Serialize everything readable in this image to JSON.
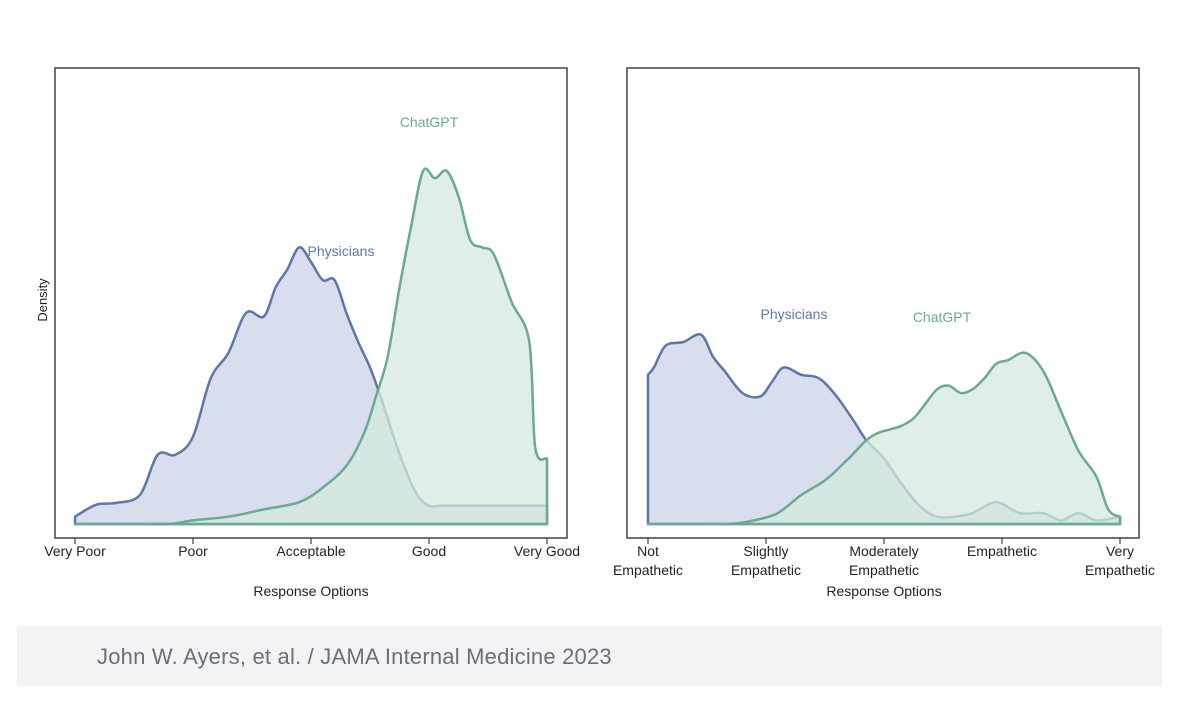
{
  "chart_data": [
    {
      "type": "area",
      "ylabel": "Density",
      "xlabel": "Response Options",
      "x_tick_labels": [
        "Very Poor",
        "Poor",
        "Acceptable",
        "Good",
        "Very Good"
      ],
      "xlim": [
        1,
        5
      ],
      "ylim": [
        0,
        1.0
      ],
      "grid": false,
      "series": [
        {
          "name": "Physicians",
          "color": "#5b78a8",
          "fill": "#d6dcec",
          "x": [
            1.0,
            1.1,
            1.2,
            1.35,
            1.55,
            1.7,
            1.85,
            2.0,
            2.15,
            2.3,
            2.45,
            2.6,
            2.7,
            2.8,
            2.9,
            3.0,
            3.1,
            3.2,
            3.3,
            3.4,
            3.5,
            3.6,
            3.7,
            3.8,
            3.9,
            4.0,
            4.1,
            4.2,
            4.3,
            4.4,
            4.5,
            4.6,
            4.7,
            4.8,
            5.0
          ],
          "y": [
            0.02,
            0.04,
            0.055,
            0.058,
            0.08,
            0.19,
            0.19,
            0.24,
            0.4,
            0.47,
            0.58,
            0.57,
            0.65,
            0.7,
            0.76,
            0.72,
            0.67,
            0.67,
            0.58,
            0.5,
            0.43,
            0.34,
            0.24,
            0.15,
            0.08,
            0.05,
            0.05,
            0.05,
            0.05,
            0.05,
            0.05,
            0.05,
            0.05,
            0.05,
            0.05
          ]
        },
        {
          "name": "ChatGPT",
          "color": "#6aaa92",
          "fill": "#d4e9df",
          "x": [
            1.0,
            1.5,
            1.8,
            2.0,
            2.3,
            2.6,
            2.9,
            3.1,
            3.3,
            3.45,
            3.55,
            3.65,
            3.75,
            3.85,
            3.95,
            4.05,
            4.15,
            4.25,
            4.35,
            4.45,
            4.55,
            4.7,
            4.85,
            4.9,
            5.0
          ],
          "y": [
            0.0,
            0.0,
            0.0,
            0.01,
            0.02,
            0.04,
            0.06,
            0.1,
            0.16,
            0.25,
            0.35,
            0.46,
            0.65,
            0.82,
            0.97,
            0.95,
            0.97,
            0.9,
            0.78,
            0.76,
            0.74,
            0.61,
            0.5,
            0.21,
            0.18
          ]
        }
      ],
      "annotations": [
        "Physicians",
        "ChatGPT"
      ]
    },
    {
      "type": "area",
      "xlabel": "Response Options",
      "x_tick_labels": [
        [
          "Not",
          "Empathetic"
        ],
        [
          "Slightly",
          "Empathetic"
        ],
        [
          "Moderately",
          "Empathetic"
        ],
        [
          "Empathetic"
        ],
        [
          "Very",
          "Empathetic"
        ]
      ],
      "xlim": [
        1,
        5
      ],
      "ylim": [
        0,
        1.0
      ],
      "grid": false,
      "series": [
        {
          "name": "Physicians",
          "color": "#5b78a8",
          "fill": "#d6dcec",
          "x": [
            1.0,
            1.05,
            1.15,
            1.3,
            1.45,
            1.55,
            1.65,
            1.8,
            1.95,
            2.05,
            2.15,
            2.3,
            2.45,
            2.6,
            2.75,
            2.85,
            3.0,
            3.15,
            3.3,
            3.45,
            3.6,
            3.75,
            3.95,
            4.15,
            4.35,
            4.5,
            4.65,
            4.8,
            5.0
          ],
          "y": [
            0.41,
            0.43,
            0.49,
            0.5,
            0.52,
            0.46,
            0.42,
            0.36,
            0.35,
            0.39,
            0.43,
            0.41,
            0.4,
            0.35,
            0.28,
            0.23,
            0.18,
            0.11,
            0.05,
            0.02,
            0.02,
            0.03,
            0.06,
            0.03,
            0.03,
            0.01,
            0.03,
            0.01,
            0.02
          ]
        },
        {
          "name": "ChatGPT",
          "color": "#6aaa92",
          "fill": "#d4e9df",
          "x": [
            1.0,
            1.5,
            1.7,
            1.9,
            2.1,
            2.3,
            2.5,
            2.7,
            2.85,
            2.95,
            3.05,
            3.15,
            3.25,
            3.35,
            3.45,
            3.55,
            3.65,
            3.75,
            3.85,
            3.95,
            4.05,
            4.2,
            4.35,
            4.5,
            4.65,
            4.8,
            4.9,
            5.0
          ],
          "y": [
            0.0,
            0.0,
            0.0,
            0.01,
            0.03,
            0.08,
            0.12,
            0.18,
            0.23,
            0.25,
            0.26,
            0.27,
            0.29,
            0.33,
            0.37,
            0.38,
            0.36,
            0.37,
            0.4,
            0.44,
            0.45,
            0.47,
            0.42,
            0.31,
            0.2,
            0.13,
            0.04,
            0.02
          ]
        }
      ],
      "annotations": [
        "Physicians",
        "ChatGPT"
      ]
    }
  ],
  "caption": "John W. Ayers, et al. / JAMA Internal Medicine 2023"
}
